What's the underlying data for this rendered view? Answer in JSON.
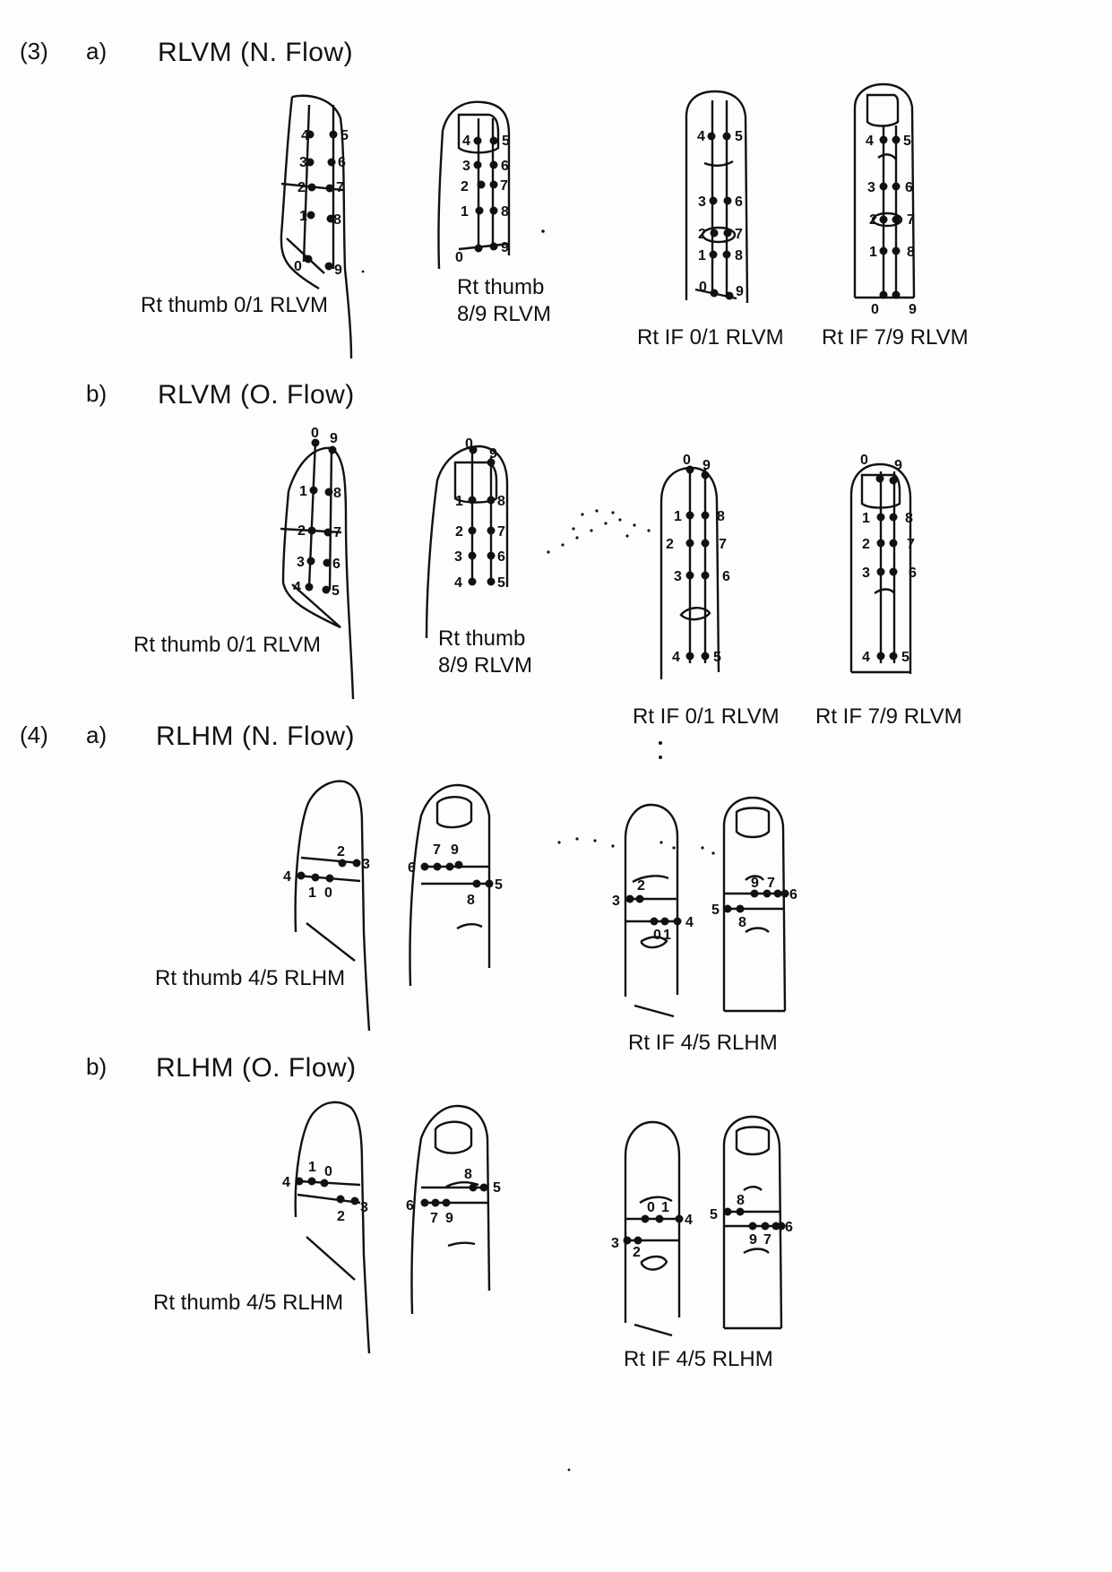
{
  "section3": {
    "number": "(3)",
    "a": {
      "letter": "a)",
      "heading": "RLVM (N. Flow)",
      "captions": [
        "Rt thumb 0/1 RLVM",
        "Rt thumb",
        "8/9 RLVM",
        "Rt IF 0/1 RLVM",
        "Rt IF 7/9 RLVM"
      ]
    },
    "b": {
      "letter": "b)",
      "heading": "RLVM (O. Flow)",
      "captions": [
        "Rt thumb 0/1 RLVM",
        "Rt thumb",
        "8/9 RLVM",
        "Rt IF 0/1 RLVM",
        "Rt IF 7/9 RLVM"
      ]
    }
  },
  "section4": {
    "number": "(4)",
    "a": {
      "letter": "a)",
      "heading": "RLHM (N. Flow)",
      "captions": [
        "Rt thumb 4/5 RLHM",
        "Rt IF 4/5 RLHM"
      ]
    },
    "b": {
      "letter": "b)",
      "heading": "RLHM (O. Flow)",
      "captions": [
        "Rt thumb 4/5 RLHM",
        "Rt IF 4/5 RLHM"
      ]
    }
  }
}
